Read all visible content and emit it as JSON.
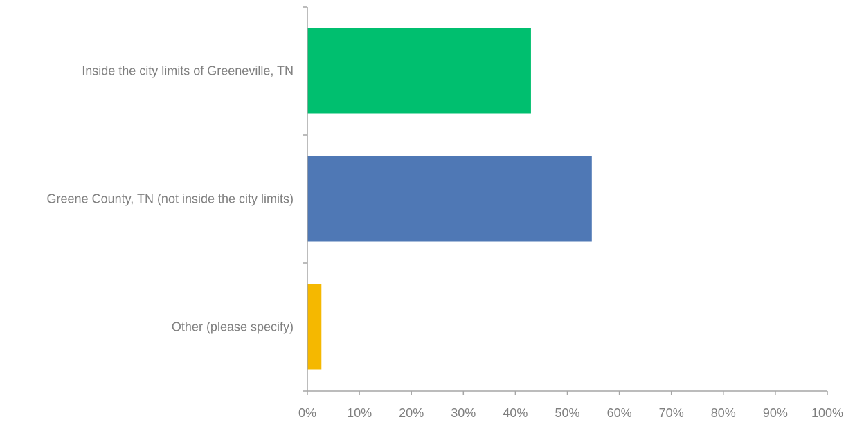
{
  "chart_data": {
    "type": "bar",
    "orientation": "horizontal",
    "categories": [
      "Inside the city limits of Greeneville, TN",
      "Greene County, TN (not inside the city limits)",
      "Other (please specify)"
    ],
    "values": [
      43,
      54.7,
      2.7
    ],
    "colors": [
      "#00bf6f",
      "#4f78b5",
      "#f5b800"
    ],
    "xlim": [
      0,
      100
    ],
    "x_ticks": [
      "0%",
      "10%",
      "20%",
      "30%",
      "40%",
      "50%",
      "60%",
      "70%",
      "80%",
      "90%",
      "100%"
    ],
    "grid": false,
    "legend": "none"
  }
}
